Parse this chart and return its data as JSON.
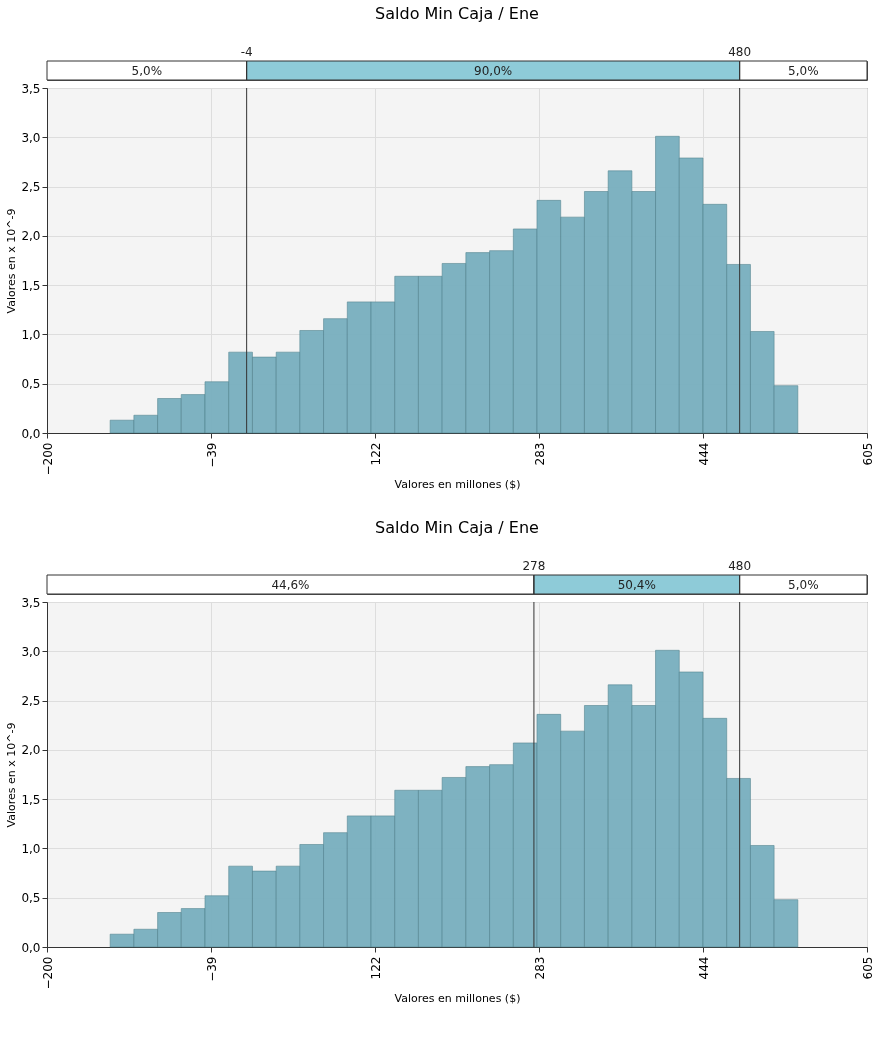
{
  "chart_data": [
    {
      "type": "histogram",
      "title": "Saldo Min Caja / Ene",
      "xlabel": "Valores en millones ($)",
      "ylabel": "Valores en x 10^-9",
      "color": "#78afbf",
      "bins": [
        -138.0,
        -114.7,
        -91.4,
        -68.2,
        -44.9,
        -21.6,
        1.7,
        25.0,
        48.2,
        71.5,
        94.8,
        118.1,
        141.4,
        164.6,
        187.9,
        211.2,
        234.5,
        257.8,
        281.0,
        304.3,
        327.6,
        350.9,
        374.2,
        397.4,
        420.7,
        444.0,
        467.3,
        490.6,
        513.8,
        537.1
      ],
      "values": [
        0.13,
        0.18,
        0.35,
        0.39,
        0.52,
        0.82,
        0.77,
        0.82,
        1.04,
        1.16,
        1.33,
        1.33,
        1.59,
        1.59,
        1.72,
        1.83,
        1.85,
        2.07,
        2.36,
        2.19,
        2.45,
        2.66,
        2.45,
        3.01,
        2.79,
        2.32,
        1.71,
        1.03,
        0.48
      ],
      "xlim": [
        -200,
        605
      ],
      "xticks": [
        -200,
        -39,
        122,
        283,
        444,
        605
      ],
      "ylim": [
        0,
        3.5
      ],
      "yticks": [
        {
          "value": 0,
          "label": "0,0"
        },
        {
          "value": 0.5,
          "label": "0,5"
        },
        {
          "value": 1,
          "label": "1,0"
        },
        {
          "value": 1.5,
          "label": "1,5"
        },
        {
          "value": 2,
          "label": "2,0"
        },
        {
          "value": 2.5,
          "label": "2,5"
        },
        {
          "value": 3,
          "label": "3,0"
        },
        {
          "value": 3.5,
          "label": "3,5"
        }
      ],
      "grid": true,
      "ref_lines": [
        {
          "axis": "x",
          "value": -4,
          "label": "-4"
        },
        {
          "axis": "x",
          "value": 480,
          "label": "480"
        }
      ],
      "annotations": [
        "5,0%",
        "90,0%",
        "5,0%"
      ]
    },
    {
      "type": "histogram",
      "title": "Saldo Min Caja / Ene",
      "xlabel": "Valores en millones ($)",
      "ylabel": "Valores en x 10^-9",
      "color": "#78afbf",
      "bins": [
        -138.0,
        -114.7,
        -91.4,
        -68.2,
        -44.9,
        -21.6,
        1.7,
        25.0,
        48.2,
        71.5,
        94.8,
        118.1,
        141.4,
        164.6,
        187.9,
        211.2,
        234.5,
        257.8,
        281.0,
        304.3,
        327.6,
        350.9,
        374.2,
        397.4,
        420.7,
        444.0,
        467.3,
        490.6,
        513.8,
        537.1
      ],
      "values": [
        0.13,
        0.18,
        0.35,
        0.39,
        0.52,
        0.82,
        0.77,
        0.82,
        1.04,
        1.16,
        1.33,
        1.33,
        1.59,
        1.59,
        1.72,
        1.83,
        1.85,
        2.07,
        2.36,
        2.19,
        2.45,
        2.66,
        2.45,
        3.01,
        2.79,
        2.32,
        1.71,
        1.03,
        0.48
      ],
      "xlim": [
        -200,
        605
      ],
      "xticks": [
        -200,
        -39,
        122,
        283,
        444,
        605
      ],
      "ylim": [
        0,
        3.5
      ],
      "yticks": [
        {
          "value": 0,
          "label": "0,0"
        },
        {
          "value": 0.5,
          "label": "0,5"
        },
        {
          "value": 1,
          "label": "1,0"
        },
        {
          "value": 1.5,
          "label": "1,5"
        },
        {
          "value": 2,
          "label": "2,0"
        },
        {
          "value": 2.5,
          "label": "2,5"
        },
        {
          "value": 3,
          "label": "3,0"
        },
        {
          "value": 3.5,
          "label": "3,5"
        }
      ],
      "grid": true,
      "ref_lines": [
        {
          "axis": "x",
          "value": 278,
          "label": "278"
        },
        {
          "axis": "x",
          "value": 480,
          "label": "480"
        }
      ],
      "annotations": [
        "44,6%",
        "50,4%",
        "5,0%"
      ]
    }
  ]
}
